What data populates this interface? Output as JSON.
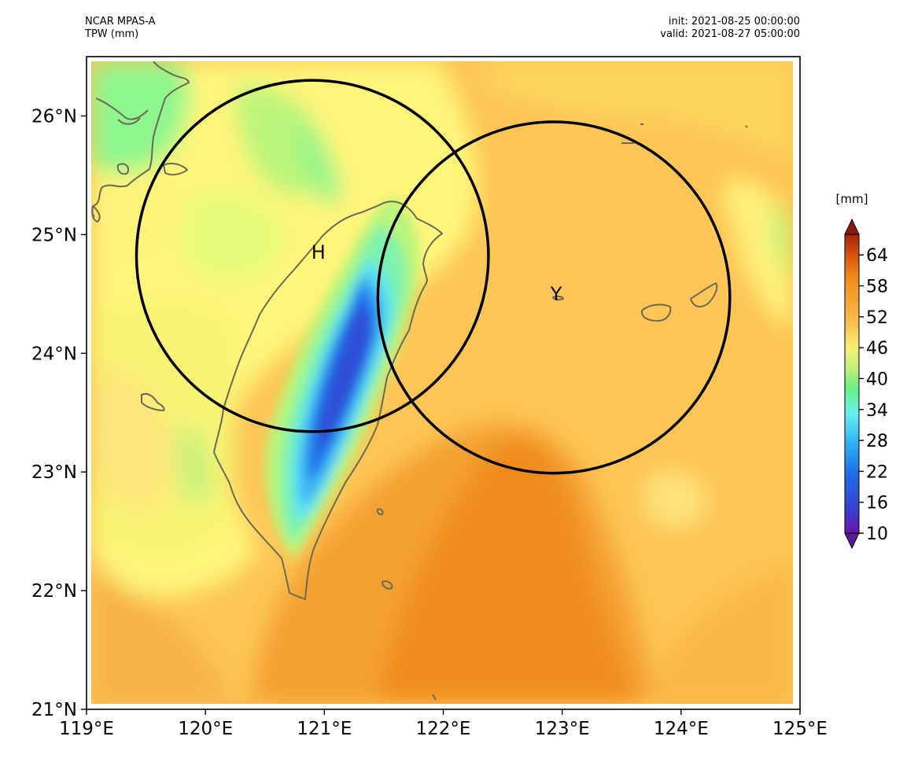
{
  "header": {
    "model": "NCAR MPAS-A",
    "field": "TPW (mm)",
    "init": "init: 2021-08-25 00:00:00",
    "valid": "valid: 2021-08-27 05:00:00"
  },
  "map": {
    "lon_range": [
      119,
      125
    ],
    "lat_range": [
      21,
      26.5
    ],
    "x_ticks": [
      "119°E",
      "120°E",
      "121°E",
      "122°E",
      "123°E",
      "124°E",
      "125°E"
    ],
    "y_ticks": [
      "21°N",
      "22°N",
      "23°N",
      "24°N",
      "25°N",
      "26°N"
    ],
    "markers": [
      {
        "label": "H",
        "lon": 120.95,
        "lat": 24.85
      },
      {
        "label": "Y",
        "lon": 122.95,
        "lat": 24.5
      }
    ],
    "circles": [
      {
        "name": "circle-h",
        "center_lon": 120.9,
        "center_lat": 24.82,
        "radius_deg": 1.48
      },
      {
        "name": "circle-y",
        "center_lon": 122.93,
        "center_lat": 24.47,
        "radius_deg": 1.48
      }
    ],
    "coastline_color": "#6b6b55",
    "circle_color": "#000000"
  },
  "colorbar": {
    "unit": "[mm]",
    "tick_labels": [
      "10",
      "16",
      "22",
      "28",
      "34",
      "40",
      "46",
      "52",
      "58",
      "64"
    ],
    "min": 10,
    "max": 68,
    "extend": "both"
  }
}
